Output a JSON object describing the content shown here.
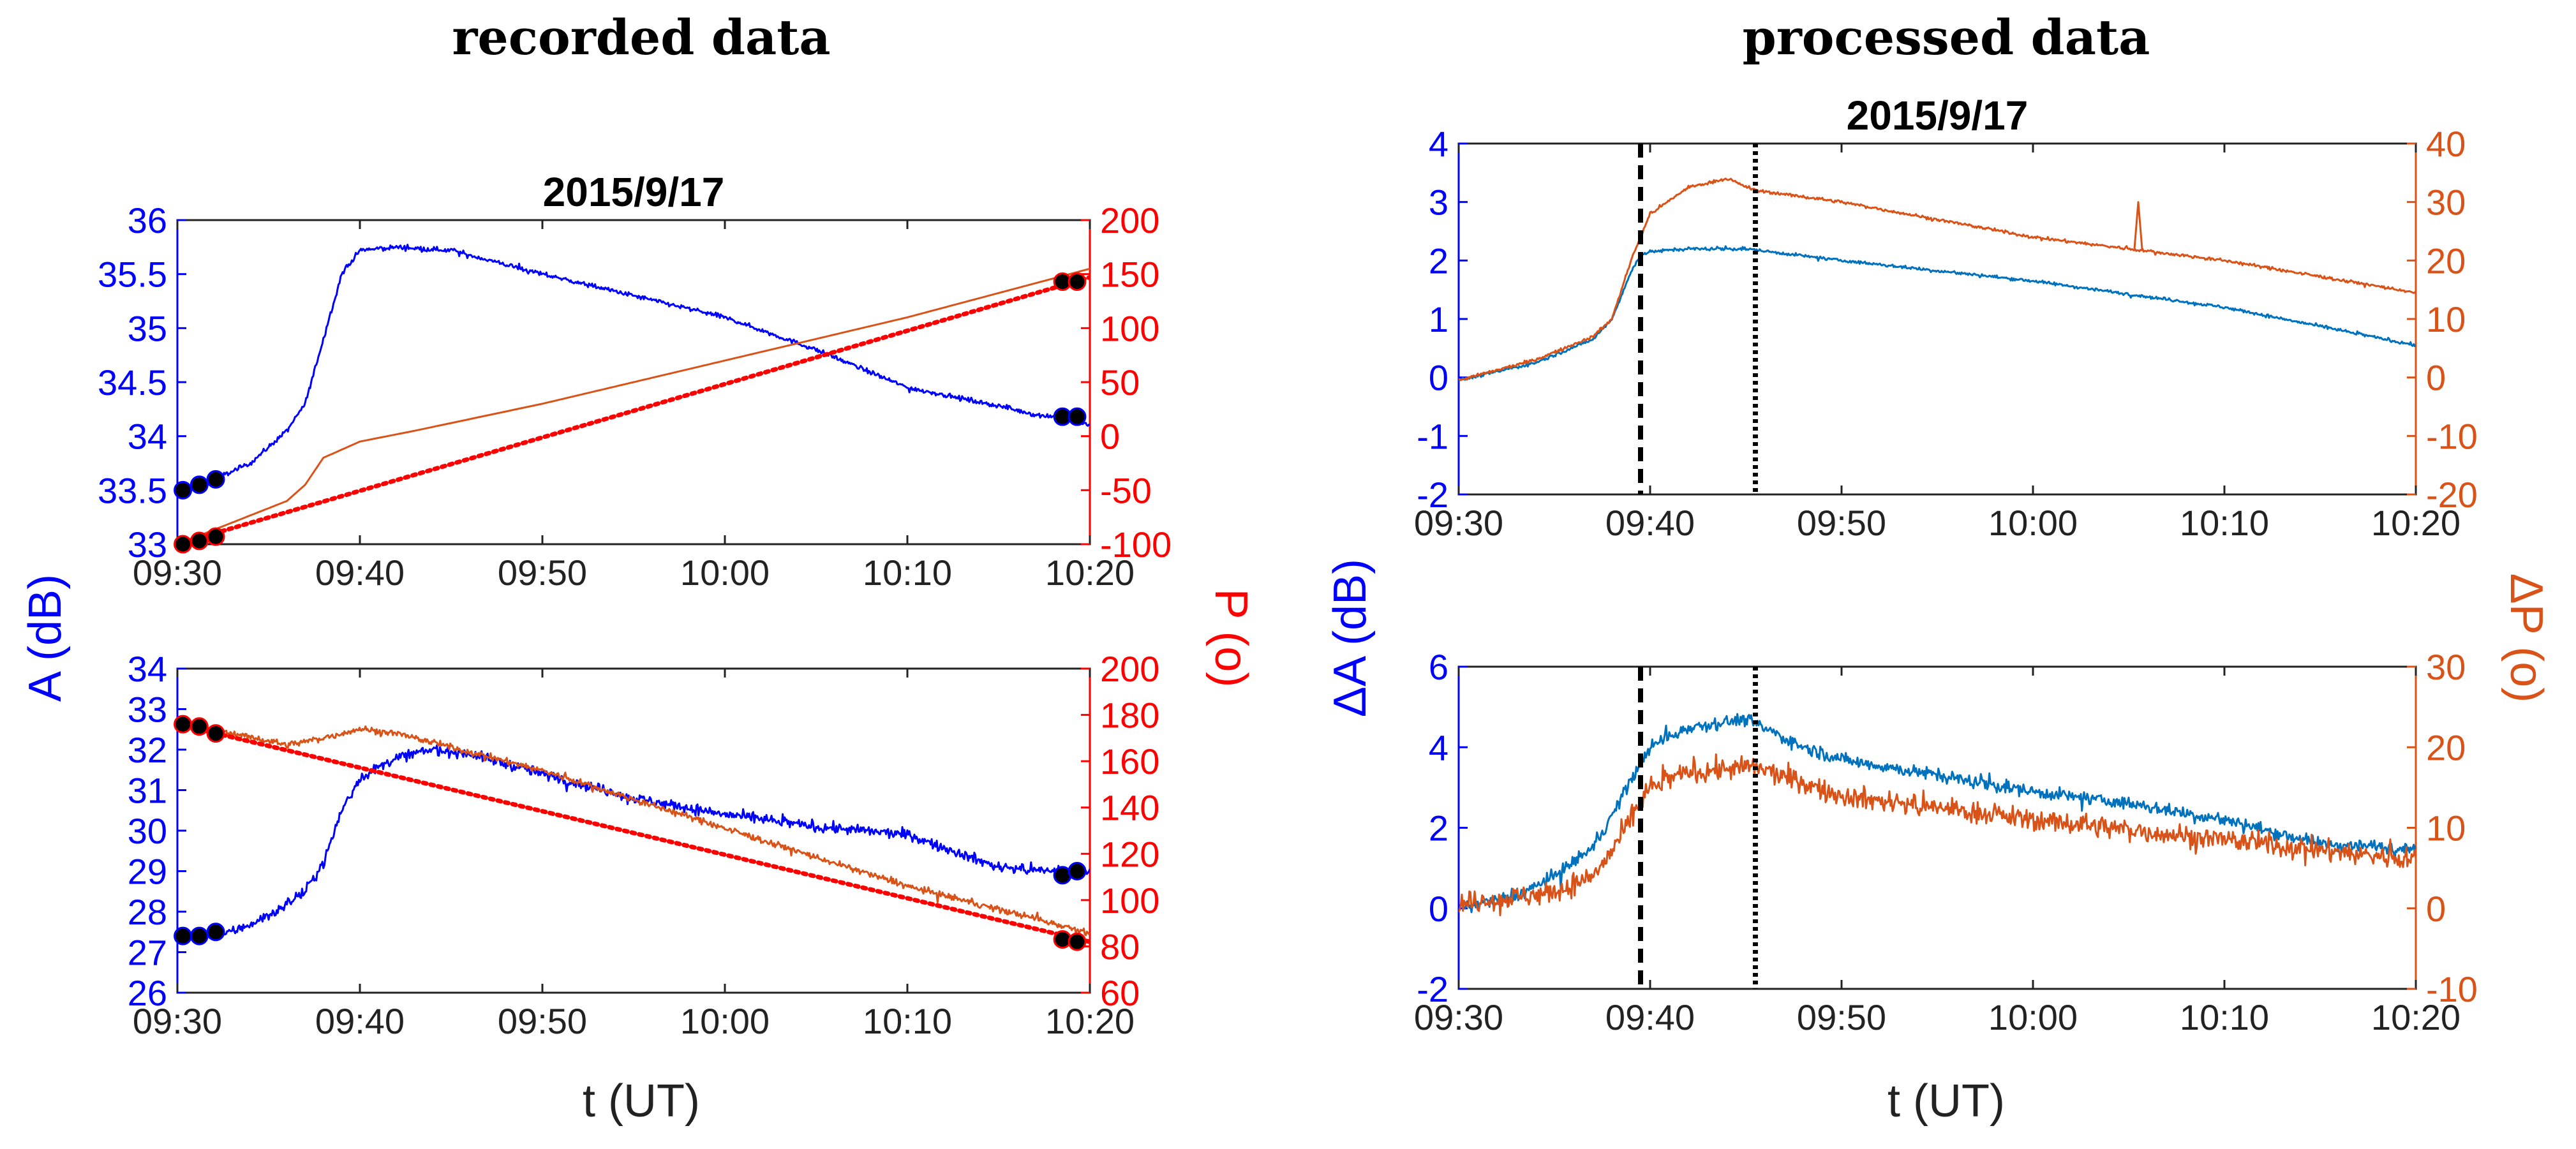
{
  "sections": {
    "left_title": "recorded data",
    "right_title": "processed data"
  },
  "labels": {
    "recorded_ylabel_left": "A (dB)",
    "recorded_ylabel_right": "P (o)",
    "processed_ylabel_left": "ΔA (dB)",
    "processed_ylabel_right": "ΔP (o)",
    "xlabel_left": "t (UT)",
    "xlabel_right": "t (UT)"
  },
  "colors": {
    "recorded_amp": "#0000ff",
    "recorded_phase": "#d95319",
    "recorded_fit": "#ff0000",
    "processed_amp": "#0072bd",
    "processed_phase": "#d95319",
    "marker_fill": "#000000"
  },
  "chart_data": [
    {
      "id": "recorded_top",
      "type": "line",
      "title": "2015/9/17",
      "x_ticks": [
        "09:30",
        "09:40",
        "09:50",
        "10:00",
        "10:10",
        "10:20"
      ],
      "x_range_min": [
        0,
        50
      ],
      "y_left": {
        "label": "A (dB)",
        "range": [
          33,
          36
        ],
        "ticks": [
          "33",
          "33.5",
          "34",
          "34.5",
          "35",
          "35.5",
          "36"
        ]
      },
      "y_right": {
        "label": "P (o)",
        "range": [
          -100,
          200
        ],
        "ticks": [
          "-100",
          "-50",
          "0",
          "50",
          "100",
          "150",
          "200"
        ]
      },
      "series": [
        {
          "name": "amplitude",
          "axis": "left",
          "style": "noisy",
          "noise": 0.02,
          "x": [
            0,
            2,
            4,
            6,
            7,
            8,
            9,
            10,
            12,
            15,
            20,
            25,
            30,
            35,
            40,
            45,
            47,
            48,
            50
          ],
          "y": [
            33.5,
            33.6,
            33.75,
            34.05,
            34.3,
            34.9,
            35.5,
            35.72,
            35.75,
            35.72,
            35.5,
            35.3,
            35.1,
            34.8,
            34.45,
            34.28,
            34.2,
            34.18,
            34.1
          ]
        },
        {
          "name": "phase",
          "axis": "right",
          "style": "smooth",
          "x": [
            0,
            6,
            7,
            8,
            10,
            13,
            20,
            30,
            40,
            50
          ],
          "y": [
            -100,
            -60,
            -45,
            -20,
            -5,
            5,
            30,
            70,
            110,
            155
          ]
        },
        {
          "name": "phase fit",
          "axis": "right",
          "style": "dotted",
          "x": [
            0,
            50
          ],
          "y": [
            -100,
            147
          ]
        }
      ],
      "markers": [
        {
          "axis": "left",
          "x": [
            0.3,
            1.2,
            2.1,
            48.5,
            49.3
          ],
          "y": [
            33.5,
            33.55,
            33.6,
            34.18,
            34.18
          ]
        },
        {
          "axis": "right",
          "x": [
            0.3,
            1.2,
            2.1,
            48.5,
            49.3
          ],
          "y": [
            -100,
            -97,
            -93,
            143,
            143
          ]
        }
      ]
    },
    {
      "id": "recorded_bottom",
      "type": "line",
      "title": "",
      "x_ticks": [
        "09:30",
        "09:40",
        "09:50",
        "10:00",
        "10:10",
        "10:20"
      ],
      "x_range_min": [
        0,
        50
      ],
      "y_left": {
        "label": "A (dB)",
        "range": [
          26,
          34
        ],
        "ticks": [
          "26",
          "27",
          "28",
          "29",
          "30",
          "31",
          "32",
          "33",
          "34"
        ]
      },
      "y_right": {
        "label": "P (o)",
        "range": [
          60,
          200
        ],
        "ticks": [
          "60",
          "80",
          "100",
          "120",
          "140",
          "160",
          "180",
          "200"
        ]
      },
      "series": [
        {
          "name": "amplitude",
          "axis": "left",
          "style": "noisy",
          "noise": 0.12,
          "x": [
            0,
            3,
            5,
            7,
            8,
            9,
            10,
            12,
            14,
            16,
            20,
            25,
            30,
            35,
            40,
            45,
            48,
            50
          ],
          "y": [
            27.4,
            27.5,
            27.9,
            28.5,
            29.2,
            30.5,
            31.3,
            31.8,
            32.0,
            31.9,
            31.4,
            30.8,
            30.4,
            30.1,
            29.9,
            29.1,
            29.0,
            29.0
          ]
        },
        {
          "name": "phase",
          "axis": "right",
          "style": "noisy",
          "noise": 1.3,
          "x": [
            0.25,
            3,
            6,
            8,
            10,
            12,
            14,
            20,
            30,
            40,
            50
          ],
          "y": [
            176,
            172,
            167,
            170,
            174,
            172,
            168,
            156,
            131,
            106,
            86
          ]
        },
        {
          "name": "phase fit",
          "axis": "right",
          "style": "dotted",
          "x": [
            0,
            50
          ],
          "y": [
            176,
            82
          ]
        }
      ],
      "markers": [
        {
          "axis": "left",
          "x": [
            0.3,
            1.2,
            2.1,
            48.5,
            49.3
          ],
          "y": [
            27.4,
            27.4,
            27.5,
            28.9,
            29.0
          ]
        },
        {
          "axis": "right",
          "x": [
            0.3,
            1.2,
            2.1,
            48.5,
            49.3
          ],
          "y": [
            176,
            175,
            172,
            83,
            82
          ]
        }
      ]
    },
    {
      "id": "processed_top",
      "type": "line",
      "title": "2015/9/17",
      "x_ticks": [
        "09:30",
        "09:40",
        "09:50",
        "10:00",
        "10:10",
        "10:20"
      ],
      "x_range_min": [
        0,
        50
      ],
      "y_left": {
        "label": "ΔA (dB)",
        "range": [
          -2,
          4
        ],
        "ticks": [
          "-2",
          "-1",
          "0",
          "1",
          "2",
          "3",
          "4"
        ]
      },
      "y_right": {
        "label": "ΔP (o)",
        "range": [
          -20,
          40
        ],
        "ticks": [
          "-20",
          "-10",
          "0",
          "10",
          "20",
          "30",
          "40"
        ]
      },
      "vlines": [
        {
          "x": 9.5,
          "style": "dashed"
        },
        {
          "x": 15.5,
          "style": "dotted"
        }
      ],
      "series": [
        {
          "name": "ΔA",
          "axis": "left",
          "style": "noisy",
          "noise": 0.025,
          "x": [
            0,
            4,
            7,
            8,
            9,
            9.5,
            10,
            12,
            15,
            20,
            30,
            40,
            50
          ],
          "y": [
            -0.05,
            0.25,
            0.65,
            1.0,
            1.8,
            2.1,
            2.15,
            2.2,
            2.2,
            2.0,
            1.65,
            1.2,
            0.55
          ]
        },
        {
          "name": "ΔP",
          "axis": "right",
          "style": "noisy",
          "noise": 0.25,
          "x": [
            0,
            4,
            7,
            8,
            9,
            10,
            12,
            14,
            15.5,
            20,
            30,
            40,
            50
          ],
          "y": [
            -0.5,
            3,
            7,
            10,
            20,
            28,
            32.5,
            34,
            32,
            30,
            24,
            20,
            14.5
          ]
        },
        {
          "name": "ΔP spike",
          "axis": "right",
          "style": "plain",
          "x": [
            35.3,
            35.5,
            35.7
          ],
          "y": [
            22,
            30,
            22
          ]
        }
      ]
    },
    {
      "id": "processed_bottom",
      "type": "line",
      "title": "",
      "x_ticks": [
        "09:30",
        "09:40",
        "09:50",
        "10:00",
        "10:10",
        "10:20"
      ],
      "x_range_min": [
        0,
        50
      ],
      "y_left": {
        "label": "ΔA (dB)",
        "range": [
          -2,
          6
        ],
        "ticks": [
          "-2",
          "0",
          "2",
          "4",
          "6"
        ]
      },
      "y_right": {
        "label": "ΔP (o)",
        "range": [
          -10,
          30
        ],
        "ticks": [
          "-10",
          "0",
          "10",
          "20",
          "30"
        ]
      },
      "vlines": [
        {
          "x": 9.5,
          "style": "dashed"
        },
        {
          "x": 15.5,
          "style": "dotted"
        }
      ],
      "series": [
        {
          "name": "ΔA",
          "axis": "left",
          "style": "noisy",
          "noise": 0.15,
          "x": [
            0,
            3,
            5,
            7,
            8,
            9,
            10,
            12,
            15,
            18,
            20,
            25,
            30,
            35,
            40,
            45,
            50
          ],
          "y": [
            0.0,
            0.3,
            0.8,
            1.5,
            2.3,
            3.2,
            4.0,
            4.5,
            4.7,
            4.0,
            3.7,
            3.3,
            2.9,
            2.6,
            2.2,
            1.6,
            1.5
          ]
        },
        {
          "name": "ΔP",
          "axis": "right",
          "style": "noisy",
          "noise": 1.3,
          "x": [
            0,
            5,
            7,
            8,
            9,
            10,
            12,
            15.5,
            20,
            30,
            40,
            50
          ],
          "y": [
            0.5,
            2,
            4,
            7,
            11,
            15,
            17,
            17.5,
            14,
            11,
            8.5,
            6
          ]
        }
      ]
    }
  ]
}
